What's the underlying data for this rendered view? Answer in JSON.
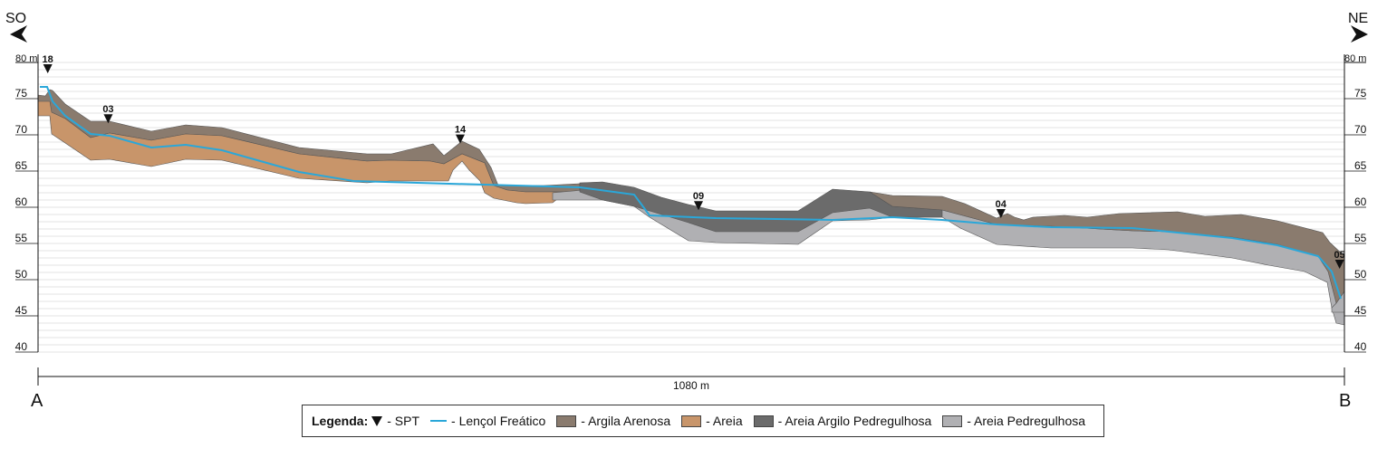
{
  "orientation": {
    "left": "SO",
    "right": "NE"
  },
  "elevation_unit_label": "80 m",
  "y_ticks": [
    "75",
    "70",
    "65",
    "60",
    "55",
    "50",
    "45",
    "40"
  ],
  "endpoints": {
    "start": "A",
    "end": "B"
  },
  "distance_label": "1080 m",
  "spt_labels": [
    "18",
    "03",
    "14",
    "09",
    "04",
    "05"
  ],
  "legend": {
    "title": "Legenda:",
    "spt": "- SPT",
    "water": "- Lençol Freático",
    "argila_arenosa": "- Argila Arenosa",
    "areia": "- Areia",
    "areia_argilo": "- Areia Argilo Pedregulhosa",
    "areia_pedregulhosa": "- Areia Pedregulhosa"
  },
  "colors": {
    "argila_arenosa": "#8a7b6e",
    "areia": "#c8956a",
    "areia_argilo": "#6b6b6b",
    "areia_pedregulhosa": "#b0b0b3",
    "water": "#2aa7d9",
    "grid": "#c8c8c8"
  },
  "chart_data": {
    "type": "area",
    "x_range_m": [
      0,
      1080
    ],
    "y_range_m": [
      40,
      80
    ],
    "spt": [
      {
        "label": "18",
        "x": 8,
        "elev": 78.5
      },
      {
        "label": "03",
        "x": 58,
        "elev": 71.6
      },
      {
        "label": "14",
        "x": 349,
        "elev": 68.8
      },
      {
        "label": "09",
        "x": 546,
        "elev": 59.6
      },
      {
        "label": "04",
        "x": 796,
        "elev": 58.5
      },
      {
        "label": "05",
        "x": 1076,
        "elev": 51.5
      }
    ]
  }
}
